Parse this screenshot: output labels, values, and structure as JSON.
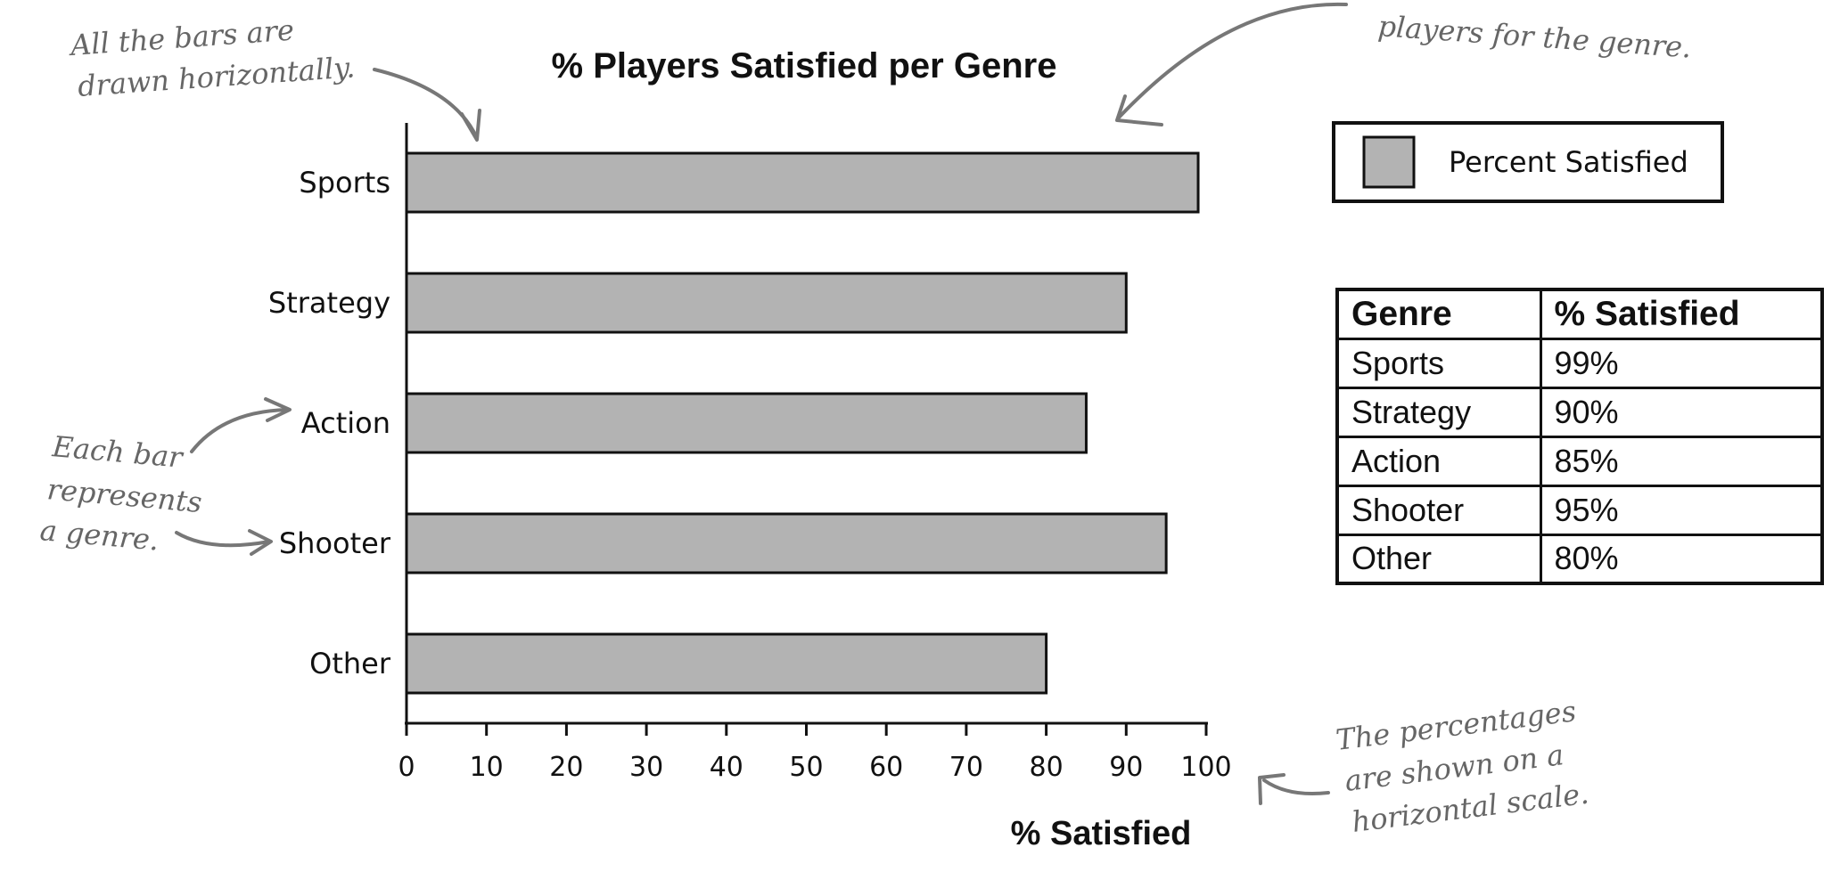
{
  "chart_data": {
    "type": "bar",
    "orientation": "horizontal",
    "title": "% Players Satisfied per Genre",
    "xlabel": "% Satisfied",
    "ylabel": "",
    "categories": [
      "Sports",
      "Strategy",
      "Action",
      "Shooter",
      "Other"
    ],
    "series": [
      {
        "name": "Percent Satisfied",
        "values": [
          99,
          90,
          85,
          95,
          80
        ]
      }
    ],
    "xlim": [
      0,
      100
    ],
    "xticks": [
      0,
      10,
      20,
      30,
      40,
      50,
      60,
      70,
      80,
      90,
      100
    ],
    "grid": false,
    "legend": {
      "placement": "top-right",
      "entries": [
        "Percent Satisfied"
      ]
    },
    "bar_color": "#b3b3b3"
  },
  "table": {
    "headers": [
      "Genre",
      "% Satisfied"
    ],
    "rows": [
      [
        "Sports",
        "99%"
      ],
      [
        "Strategy",
        "90%"
      ],
      [
        "Action",
        "85%"
      ],
      [
        "Shooter",
        "95%"
      ],
      [
        "Other",
        "80%"
      ]
    ]
  },
  "annotations": {
    "bars_horizontal": [
      "All the bars are",
      "drawn horizontally."
    ],
    "bar_length": [
      "players for the genre."
    ],
    "each_bar": [
      "Each bar",
      "represents",
      "a genre."
    ],
    "percent_scale": [
      "The percentages",
      "are shown on a",
      "horizontal scale."
    ]
  }
}
